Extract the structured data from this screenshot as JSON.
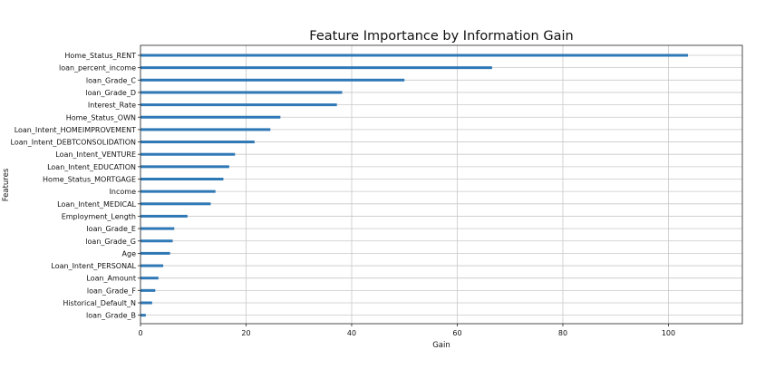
{
  "chart_data": {
    "type": "bar",
    "orientation": "horizontal",
    "title": "Feature Importance by Information Gain",
    "xlabel": "Gain",
    "ylabel": "Features",
    "xlim": [
      0,
      114
    ],
    "xticks": [
      0,
      20,
      40,
      60,
      80,
      100
    ],
    "grid": true,
    "bar_color": "#2e78b5",
    "categories": [
      "Home_Status_RENT",
      "loan_percent_income",
      "loan_Grade_C",
      "loan_Grade_D",
      "Interest_Rate",
      "Home_Status_OWN",
      "Loan_Intent_HOMEIMPROVEMENT",
      "Loan_Intent_DEBTCONSOLIDATION",
      "Loan_Intent_VENTURE",
      "Loan_Intent_EDUCATION",
      "Home_Status_MORTGAGE",
      "Income",
      "Loan_Intent_MEDICAL",
      "Employment_Length",
      "loan_Grade_E",
      "loan_Grade_G",
      "Age",
      "Loan_Intent_PERSONAL",
      "Loan_Amount",
      "loan_Grade_F",
      "Historical_Default_N",
      "loan_Grade_B"
    ],
    "values": [
      103.7,
      66.6,
      50.0,
      38.2,
      37.2,
      26.5,
      24.6,
      21.6,
      17.9,
      16.8,
      15.7,
      14.2,
      13.3,
      8.9,
      6.4,
      6.1,
      5.6,
      4.3,
      3.4,
      2.8,
      2.2,
      1.0
    ]
  }
}
